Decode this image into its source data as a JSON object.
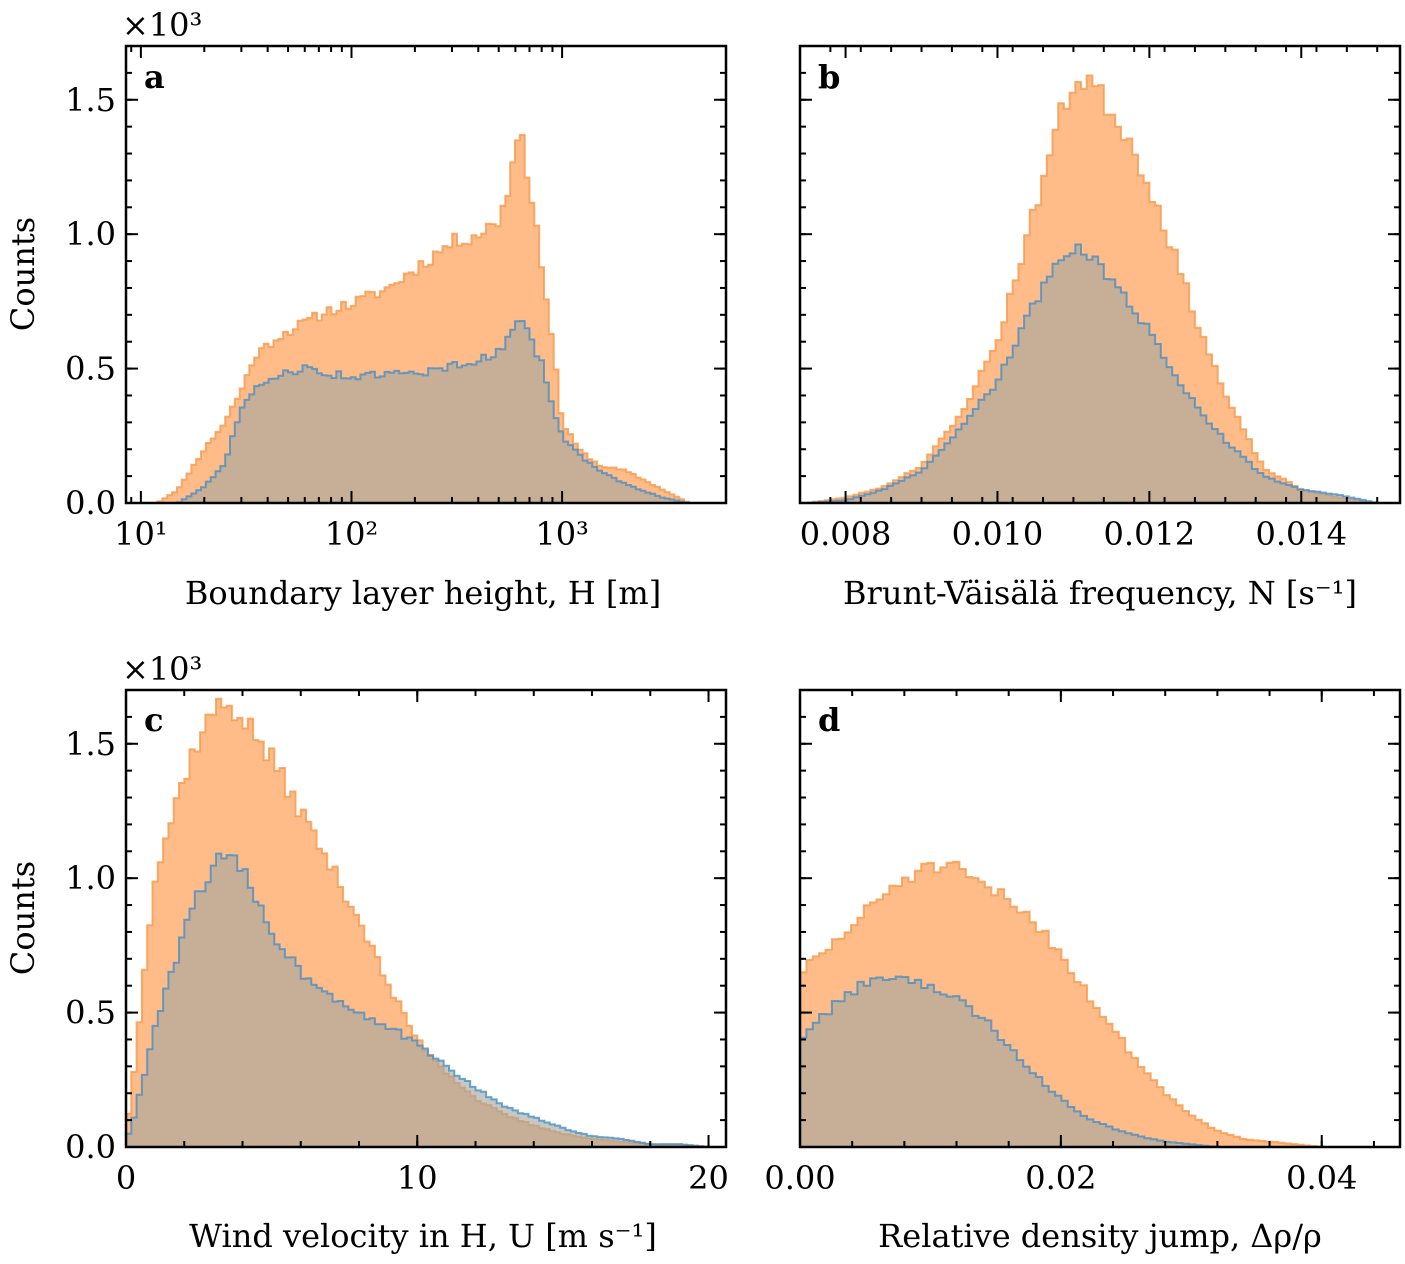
{
  "colors": {
    "orange_fill": "#ffbb88",
    "orange_line": "#f59a4c",
    "blue_fill": "#a3a6a0",
    "blue_line": "#4a8fc4"
  },
  "chart_data": [
    {
      "id": "a",
      "type": "histogram",
      "panel_label": "a",
      "xlabel": "Boundary layer height, H [m]",
      "ylabel": "Counts",
      "y_multiplier": "×10³",
      "x_scale": "log",
      "xlim": [
        8.5,
        6000
      ],
      "ylim": [
        0,
        1.7
      ],
      "xticks": [
        10,
        100,
        1000
      ],
      "xtick_labels": [
        "10¹",
        "10²",
        "10³"
      ],
      "yticks": [
        0,
        0.5,
        1.0,
        1.5
      ],
      "ytick_labels": [
        "0.0",
        "0.5",
        "1.0",
        "1.5"
      ],
      "x_knots": [
        12,
        15,
        20,
        25,
        30,
        35,
        45,
        60,
        80,
        100,
        150,
        200,
        300,
        400,
        500,
        560,
        600,
        640,
        680,
        720,
        800,
        900,
        1000,
        1200,
        1500,
        2000,
        3000,
        4000
      ],
      "series": [
        {
          "color": "orange",
          "values": [
            0.0,
            0.05,
            0.2,
            0.3,
            0.42,
            0.55,
            0.62,
            0.67,
            0.72,
            0.74,
            0.8,
            0.87,
            0.97,
            1.0,
            1.05,
            1.18,
            1.32,
            1.43,
            1.25,
            1.1,
            0.9,
            0.6,
            0.3,
            0.2,
            0.14,
            0.12,
            0.05,
            0.0
          ]
        },
        {
          "color": "blue",
          "values": [
            0.0,
            0.0,
            0.06,
            0.15,
            0.35,
            0.42,
            0.48,
            0.5,
            0.48,
            0.47,
            0.48,
            0.48,
            0.51,
            0.53,
            0.56,
            0.62,
            0.68,
            0.7,
            0.66,
            0.6,
            0.52,
            0.35,
            0.25,
            0.18,
            0.12,
            0.07,
            0.02,
            0.0
          ]
        }
      ]
    },
    {
      "id": "b",
      "type": "histogram",
      "panel_label": "b",
      "xlabel": "Brunt-Väisälä frequency, N [s⁻¹]",
      "xlim": [
        0.0074,
        0.0153
      ],
      "ylim": [
        0,
        1.7
      ],
      "xticks": [
        0.008,
        0.01,
        0.012,
        0.014
      ],
      "xtick_labels": [
        "0.008",
        "0.010",
        "0.012",
        "0.014"
      ],
      "yticks": [
        0,
        0.5,
        1.0,
        1.5
      ],
      "x_knots": [
        0.0075,
        0.008,
        0.0085,
        0.009,
        0.0095,
        0.01,
        0.0103,
        0.0106,
        0.0108,
        0.011,
        0.0112,
        0.0114,
        0.0117,
        0.012,
        0.0123,
        0.0126,
        0.013,
        0.0135,
        0.014,
        0.0145,
        0.015
      ],
      "series": [
        {
          "color": "orange",
          "values": [
            0.0,
            0.02,
            0.06,
            0.14,
            0.32,
            0.6,
            0.9,
            1.2,
            1.42,
            1.56,
            1.58,
            1.5,
            1.37,
            1.18,
            0.95,
            0.7,
            0.4,
            0.13,
            0.05,
            0.02,
            0.0
          ]
        },
        {
          "color": "blue",
          "values": [
            0.0,
            0.01,
            0.05,
            0.12,
            0.27,
            0.45,
            0.63,
            0.8,
            0.91,
            0.96,
            0.93,
            0.85,
            0.75,
            0.64,
            0.5,
            0.37,
            0.23,
            0.1,
            0.05,
            0.03,
            0.0
          ]
        }
      ]
    },
    {
      "id": "c",
      "type": "histogram",
      "panel_label": "c",
      "xlabel": "Wind velocity in H, U [m s⁻¹]",
      "ylabel": "Counts",
      "y_multiplier": "×10³",
      "xlim": [
        0,
        20.6
      ],
      "ylim": [
        0,
        1.7
      ],
      "xticks": [
        0,
        10,
        20
      ],
      "xtick_labels": [
        "0",
        "10",
        "20"
      ],
      "yticks": [
        0,
        0.5,
        1.0,
        1.5
      ],
      "ytick_labels": [
        "0.0",
        "0.5",
        "1.0",
        "1.5"
      ],
      "x_knots": [
        0,
        0.3,
        0.7,
        1.0,
        1.5,
        2.0,
        2.5,
        3.0,
        3.5,
        4.0,
        4.5,
        5.0,
        6.0,
        7.0,
        8.0,
        9.0,
        10.0,
        11.0,
        12.0,
        13.0,
        14.0,
        15.0,
        16.0,
        17.0,
        18.0,
        19.0,
        20.0
      ],
      "series": [
        {
          "color": "orange",
          "values": [
            0.05,
            0.3,
            0.75,
            1.0,
            1.2,
            1.38,
            1.52,
            1.62,
            1.65,
            1.6,
            1.52,
            1.44,
            1.25,
            1.05,
            0.85,
            0.6,
            0.4,
            0.28,
            0.18,
            0.12,
            0.08,
            0.05,
            0.03,
            0.02,
            0.01,
            0.01,
            0.0
          ]
        },
        {
          "color": "blue",
          "values": [
            0.02,
            0.12,
            0.3,
            0.45,
            0.62,
            0.8,
            0.95,
            1.05,
            1.08,
            1.03,
            0.92,
            0.8,
            0.65,
            0.57,
            0.5,
            0.45,
            0.38,
            0.3,
            0.22,
            0.15,
            0.11,
            0.07,
            0.04,
            0.03,
            0.01,
            0.01,
            0.0
          ]
        }
      ]
    },
    {
      "id": "d",
      "type": "histogram",
      "panel_label": "d",
      "xlabel": "Relative density jump, Δρ/ρ",
      "xlim": [
        0,
        0.046
      ],
      "ylim": [
        0,
        1.7
      ],
      "xticks": [
        0,
        0.02,
        0.04
      ],
      "xtick_labels": [
        "0.00",
        "0.02",
        "0.04"
      ],
      "yticks": [
        0,
        0.5,
        1.0,
        1.5
      ],
      "x_knots": [
        0,
        0.002,
        0.004,
        0.006,
        0.008,
        0.01,
        0.012,
        0.014,
        0.016,
        0.018,
        0.02,
        0.022,
        0.024,
        0.026,
        0.028,
        0.03,
        0.032,
        0.034,
        0.036,
        0.038,
        0.04,
        0.042,
        0.044
      ],
      "series": [
        {
          "color": "orange",
          "values": [
            0.65,
            0.73,
            0.82,
            0.92,
            1.0,
            1.04,
            1.03,
            0.97,
            0.92,
            0.84,
            0.72,
            0.57,
            0.44,
            0.31,
            0.2,
            0.12,
            0.06,
            0.03,
            0.02,
            0.01,
            0.0,
            0.0,
            0.0
          ]
        },
        {
          "color": "blue",
          "values": [
            0.4,
            0.5,
            0.58,
            0.64,
            0.63,
            0.6,
            0.55,
            0.48,
            0.38,
            0.27,
            0.18,
            0.11,
            0.07,
            0.04,
            0.02,
            0.01,
            0.0,
            0.0,
            0.0,
            0.0,
            0.0,
            0.0,
            0.0
          ]
        }
      ]
    }
  ]
}
